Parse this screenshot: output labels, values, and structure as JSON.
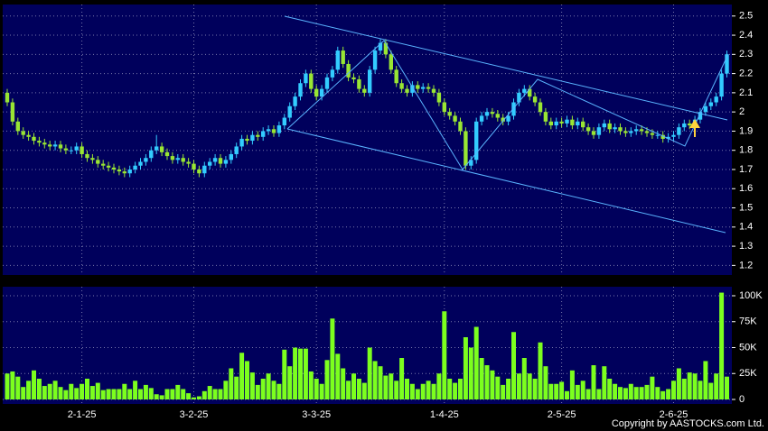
{
  "chart_data": [
    {
      "type": "candlestick",
      "up_color": "#33ccff",
      "down_color": "#99e633",
      "grid": true,
      "ylim": [
        1.15,
        2.56
      ],
      "yticks": [
        1.2,
        1.3,
        1.4,
        1.5,
        1.6,
        1.7,
        1.8,
        1.9,
        2,
        2.1,
        2.2,
        2.3,
        2.4,
        2.5
      ],
      "candles": [
        [
          2.1,
          2.12,
          2.03,
          2.05
        ],
        [
          2.05,
          2.07,
          1.93,
          1.95
        ],
        [
          1.95,
          1.97,
          1.88,
          1.9
        ],
        [
          1.9,
          1.92,
          1.86,
          1.88
        ],
        [
          1.88,
          1.9,
          1.85,
          1.87
        ],
        [
          1.87,
          1.89,
          1.83,
          1.85
        ],
        [
          1.85,
          1.87,
          1.82,
          1.84
        ],
        [
          1.84,
          1.86,
          1.81,
          1.83
        ],
        [
          1.83,
          1.85,
          1.8,
          1.82
        ],
        [
          1.82,
          1.85,
          1.8,
          1.83
        ],
        [
          1.83,
          1.85,
          1.79,
          1.81
        ],
        [
          1.81,
          1.83,
          1.78,
          1.8
        ],
        [
          1.8,
          1.82,
          1.78,
          1.8
        ],
        [
          1.8,
          1.84,
          1.78,
          1.82
        ],
        [
          1.82,
          1.84,
          1.76,
          1.78
        ],
        [
          1.78,
          1.8,
          1.74,
          1.76
        ],
        [
          1.76,
          1.78,
          1.73,
          1.75
        ],
        [
          1.75,
          1.77,
          1.71,
          1.73
        ],
        [
          1.73,
          1.75,
          1.7,
          1.72
        ],
        [
          1.72,
          1.74,
          1.69,
          1.71
        ],
        [
          1.71,
          1.73,
          1.68,
          1.7
        ],
        [
          1.7,
          1.72,
          1.67,
          1.69
        ],
        [
          1.69,
          1.71,
          1.66,
          1.68
        ],
        [
          1.68,
          1.72,
          1.66,
          1.7
        ],
        [
          1.7,
          1.74,
          1.68,
          1.72
        ],
        [
          1.72,
          1.76,
          1.7,
          1.74
        ],
        [
          1.74,
          1.78,
          1.72,
          1.76
        ],
        [
          1.76,
          1.82,
          1.74,
          1.8
        ],
        [
          1.8,
          1.88,
          1.78,
          1.82
        ],
        [
          1.82,
          1.84,
          1.77,
          1.79
        ],
        [
          1.79,
          1.81,
          1.75,
          1.77
        ],
        [
          1.77,
          1.79,
          1.73,
          1.75
        ],
        [
          1.75,
          1.78,
          1.73,
          1.76
        ],
        [
          1.76,
          1.78,
          1.72,
          1.74
        ],
        [
          1.74,
          1.76,
          1.71,
          1.73
        ],
        [
          1.73,
          1.75,
          1.68,
          1.7
        ],
        [
          1.7,
          1.72,
          1.66,
          1.68
        ],
        [
          1.68,
          1.74,
          1.66,
          1.72
        ],
        [
          1.72,
          1.76,
          1.7,
          1.74
        ],
        [
          1.74,
          1.78,
          1.72,
          1.76
        ],
        [
          1.76,
          1.78,
          1.71,
          1.73
        ],
        [
          1.73,
          1.77,
          1.71,
          1.75
        ],
        [
          1.75,
          1.8,
          1.73,
          1.78
        ],
        [
          1.78,
          1.84,
          1.76,
          1.82
        ],
        [
          1.82,
          1.88,
          1.8,
          1.86
        ],
        [
          1.86,
          1.88,
          1.83,
          1.85
        ],
        [
          1.85,
          1.9,
          1.83,
          1.88
        ],
        [
          1.88,
          1.9,
          1.85,
          1.87
        ],
        [
          1.87,
          1.92,
          1.85,
          1.9
        ],
        [
          1.9,
          1.93,
          1.88,
          1.91
        ],
        [
          1.91,
          1.93,
          1.87,
          1.89
        ],
        [
          1.89,
          1.95,
          1.87,
          1.93
        ],
        [
          1.93,
          1.99,
          1.91,
          1.97
        ],
        [
          1.97,
          2.05,
          1.95,
          2.03
        ],
        [
          2.03,
          2.1,
          2.01,
          2.08
        ],
        [
          2.08,
          2.17,
          2.06,
          2.15
        ],
        [
          2.15,
          2.22,
          2.13,
          2.2
        ],
        [
          2.2,
          2.22,
          2.1,
          2.12
        ],
        [
          2.12,
          2.14,
          2.06,
          2.08
        ],
        [
          2.08,
          2.14,
          2.06,
          2.12
        ],
        [
          2.12,
          2.2,
          2.1,
          2.18
        ],
        [
          2.18,
          2.24,
          2.16,
          2.22
        ],
        [
          2.22,
          2.34,
          2.2,
          2.32
        ],
        [
          2.32,
          2.34,
          2.23,
          2.25
        ],
        [
          2.25,
          2.27,
          2.16,
          2.18
        ],
        [
          2.18,
          2.2,
          2.15,
          2.17
        ],
        [
          2.17,
          2.19,
          2.1,
          2.12
        ],
        [
          2.12,
          2.14,
          2.08,
          2.1
        ],
        [
          2.1,
          2.24,
          2.08,
          2.22
        ],
        [
          2.22,
          2.34,
          2.2,
          2.32
        ],
        [
          2.32,
          2.38,
          2.3,
          2.36
        ],
        [
          2.36,
          2.38,
          2.28,
          2.3
        ],
        [
          2.3,
          2.32,
          2.2,
          2.22
        ],
        [
          2.22,
          2.24,
          2.13,
          2.15
        ],
        [
          2.15,
          2.17,
          2.1,
          2.12
        ],
        [
          2.12,
          2.14,
          2.08,
          2.1
        ],
        [
          2.1,
          2.16,
          2.08,
          2.14
        ],
        [
          2.14,
          2.16,
          2.1,
          2.12
        ],
        [
          2.12,
          2.15,
          2.1,
          2.13
        ],
        [
          2.13,
          2.15,
          2.1,
          2.12
        ],
        [
          2.12,
          2.14,
          2.08,
          2.1
        ],
        [
          2.1,
          2.12,
          2.03,
          2.05
        ],
        [
          2.05,
          2.07,
          1.98,
          2.0
        ],
        [
          2.0,
          2.02,
          1.96,
          1.98
        ],
        [
          1.98,
          2.0,
          1.93,
          1.95
        ],
        [
          1.95,
          1.97,
          1.88,
          1.9
        ],
        [
          1.9,
          1.92,
          1.7,
          1.72
        ],
        [
          1.72,
          1.77,
          1.7,
          1.75
        ],
        [
          1.75,
          1.97,
          1.73,
          1.95
        ],
        [
          1.95,
          2.0,
          1.93,
          1.98
        ],
        [
          1.98,
          2.02,
          1.96,
          2.0
        ],
        [
          2.0,
          2.02,
          1.97,
          1.99
        ],
        [
          1.99,
          2.01,
          1.95,
          1.97
        ],
        [
          1.97,
          1.99,
          1.93,
          1.95
        ],
        [
          1.95,
          2.0,
          1.93,
          1.98
        ],
        [
          1.98,
          2.07,
          1.96,
          2.05
        ],
        [
          2.05,
          2.12,
          2.03,
          2.1
        ],
        [
          2.1,
          2.14,
          2.08,
          2.12
        ],
        [
          2.12,
          2.14,
          2.06,
          2.08
        ],
        [
          2.08,
          2.1,
          2.03,
          2.05
        ],
        [
          2.05,
          2.07,
          1.98,
          2.0
        ],
        [
          2.0,
          2.02,
          1.93,
          1.95
        ],
        [
          1.95,
          1.97,
          1.91,
          1.93
        ],
        [
          1.93,
          1.97,
          1.91,
          1.95
        ],
        [
          1.95,
          1.97,
          1.92,
          1.94
        ],
        [
          1.94,
          1.98,
          1.92,
          1.96
        ],
        [
          1.96,
          1.98,
          1.91,
          1.93
        ],
        [
          1.93,
          1.97,
          1.91,
          1.95
        ],
        [
          1.95,
          1.97,
          1.9,
          1.92
        ],
        [
          1.92,
          1.94,
          1.88,
          1.9
        ],
        [
          1.9,
          1.92,
          1.86,
          1.88
        ],
        [
          1.88,
          1.94,
          1.86,
          1.92
        ],
        [
          1.92,
          1.96,
          1.9,
          1.94
        ],
        [
          1.94,
          1.96,
          1.89,
          1.91
        ],
        [
          1.91,
          1.94,
          1.89,
          1.92
        ],
        [
          1.92,
          1.94,
          1.88,
          1.9
        ],
        [
          1.9,
          1.92,
          1.87,
          1.89
        ],
        [
          1.89,
          1.92,
          1.87,
          1.9
        ],
        [
          1.9,
          1.93,
          1.88,
          1.91
        ],
        [
          1.91,
          1.93,
          1.88,
          1.9
        ],
        [
          1.9,
          1.92,
          1.87,
          1.89
        ],
        [
          1.89,
          1.91,
          1.86,
          1.88
        ],
        [
          1.88,
          1.9,
          1.86,
          1.88
        ],
        [
          1.88,
          1.9,
          1.84,
          1.86
        ],
        [
          1.86,
          1.89,
          1.84,
          1.87
        ],
        [
          1.87,
          1.9,
          1.85,
          1.88
        ],
        [
          1.88,
          1.94,
          1.86,
          1.92
        ],
        [
          1.92,
          1.96,
          1.9,
          1.94
        ],
        [
          1.94,
          1.96,
          1.91,
          1.93
        ],
        [
          1.93,
          1.98,
          1.91,
          1.96
        ],
        [
          1.96,
          2.02,
          1.94,
          2.0
        ],
        [
          2.0,
          2.05,
          1.98,
          2.03
        ],
        [
          2.03,
          2.07,
          2.01,
          2.05
        ],
        [
          2.05,
          2.1,
          2.03,
          2.08
        ],
        [
          2.08,
          2.22,
          2.06,
          2.2
        ],
        [
          2.2,
          2.32,
          2.18,
          2.3
        ]
      ]
    },
    {
      "type": "bar",
      "color": "#7cff1e",
      "grid": true,
      "ylim": [
        0,
        110000
      ],
      "yticks": [
        0,
        {
          "value": 25000,
          "label": "25K"
        },
        {
          "value": 50000,
          "label": "50K"
        },
        {
          "value": 75000,
          "label": "75K"
        },
        {
          "value": 100000,
          "label": "100K"
        }
      ],
      "categories": [
        null,
        null,
        null,
        null,
        null,
        null,
        null,
        null,
        null,
        null,
        null,
        null,
        null,
        null,
        "2-1-25",
        null,
        null,
        null,
        null,
        null,
        null,
        null,
        null,
        null,
        null,
        null,
        null,
        null,
        null,
        null,
        null,
        null,
        null,
        null,
        null,
        "3-2-25",
        null,
        null,
        null,
        null,
        null,
        null,
        null,
        null,
        null,
        null,
        null,
        null,
        null,
        null,
        null,
        null,
        null,
        null,
        null,
        null,
        null,
        null,
        "3-3-25",
        null,
        null,
        null,
        null,
        null,
        null,
        null,
        null,
        null,
        null,
        null,
        null,
        null,
        null,
        null,
        null,
        null,
        null,
        null,
        null,
        null,
        null,
        null,
        "1-4-25",
        null,
        null,
        null,
        null,
        null,
        null,
        null,
        null,
        null,
        null,
        null,
        null,
        null,
        null,
        null,
        null,
        null,
        null,
        null,
        null,
        null,
        "2-5-25",
        null,
        null,
        null,
        null,
        null,
        null,
        null,
        null,
        null,
        null,
        null,
        null,
        null,
        null,
        null,
        null,
        null,
        null,
        null,
        null,
        "2-6-25",
        null,
        null,
        null,
        null,
        null,
        null,
        null,
        null,
        null,
        null
      ],
      "values": [
        25000,
        27000,
        22000,
        12000,
        18000,
        28000,
        20000,
        13000,
        15000,
        18000,
        12000,
        9000,
        15000,
        11000,
        15000,
        20000,
        13000,
        16000,
        9000,
        10000,
        10000,
        10000,
        15000,
        10000,
        18000,
        10000,
        14000,
        11000,
        5000,
        4000,
        10000,
        10000,
        14000,
        10000,
        6000,
        2000,
        3000,
        8000,
        13000,
        10000,
        10000,
        18000,
        30000,
        22000,
        45000,
        37000,
        26000,
        14000,
        20000,
        25000,
        18000,
        15000,
        48000,
        32000,
        50000,
        49000,
        49000,
        27000,
        20000,
        15000,
        38000,
        78000,
        44000,
        30000,
        18000,
        25000,
        20000,
        16000,
        50000,
        37000,
        32000,
        23000,
        25000,
        18000,
        40000,
        20000,
        15000,
        10000,
        15000,
        18000,
        15000,
        25000,
        85000,
        20000,
        16000,
        20000,
        60000,
        50000,
        70000,
        40000,
        33000,
        28000,
        22000,
        14000,
        20000,
        65000,
        25000,
        40000,
        25000,
        20000,
        55000,
        32000,
        15000,
        15000,
        17000,
        8000,
        28000,
        14000,
        18000,
        10000,
        33000,
        10000,
        32000,
        20000,
        15000,
        12000,
        11000,
        15000,
        12000,
        12000,
        14000,
        22000,
        12000,
        8000,
        10000,
        18000,
        30000,
        20000,
        26000,
        25000,
        18000,
        37000,
        16000,
        25000,
        103000,
        22000
      ]
    }
  ],
  "copyright": "Copyright by AASTOCKS.com Ltd."
}
